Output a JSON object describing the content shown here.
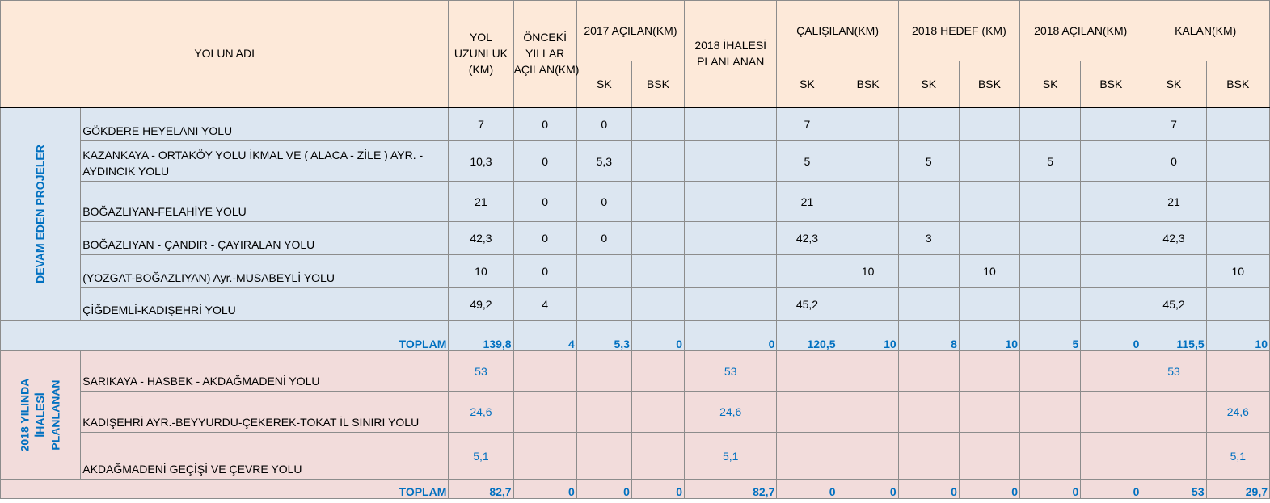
{
  "headers": {
    "yolun_adi": "YOLUN ADI",
    "yol_uzunluk": "YOL UZUNLUK (KM)",
    "onceki": "ÖNCEKİ YILLAR AÇILAN(KM)",
    "acilan_2017": "2017 AÇILAN(KM)",
    "ihale_2018": "2018 İHALESİ PLANLANAN",
    "calisilan": "ÇALIŞILAN(KM)",
    "hedef_2018": "2018 HEDEF (KM)",
    "acilan_2018": "2018 AÇILAN(KM)",
    "kalan": "KALAN(KM)",
    "sk": "SK",
    "bsk": "BSK"
  },
  "section1": {
    "label": "DEVAM EDEN PROJELER",
    "rows": [
      {
        "name": "GÖKDERE HEYELANI YOLU",
        "cells": [
          "7",
          "0",
          "0",
          "",
          "",
          "7",
          "",
          "",
          "",
          "",
          "",
          "7",
          ""
        ]
      },
      {
        "name": "KAZANKAYA - ORTAKÖY YOLU İKMAL VE ( ALACA - ZİLE ) AYR. - AYDINCIK YOLU",
        "cells": [
          "10,3",
          "0",
          "5,3",
          "",
          "",
          "5",
          "",
          "5",
          "",
          "5",
          "",
          "0",
          ""
        ]
      },
      {
        "name": "BOĞAZLIYAN-FELAHİYE YOLU",
        "cells": [
          "21",
          "0",
          "0",
          "",
          "",
          "21",
          "",
          "",
          "",
          "",
          "",
          "21",
          ""
        ]
      },
      {
        "name": "BOĞAZLIYAN - ÇANDIR - ÇAYIRALAN YOLU",
        "cells": [
          "42,3",
          "0",
          "0",
          "",
          "",
          "42,3",
          "",
          "3",
          "",
          "",
          "",
          "42,3",
          ""
        ]
      },
      {
        "name": "(YOZGAT-BOĞAZLIYAN) Ayr.-MUSABEYLİ YOLU",
        "cells": [
          "10",
          "0",
          "",
          "",
          "",
          "",
          "10",
          "",
          "10",
          "",
          "",
          "",
          "10"
        ]
      },
      {
        "name": "ÇİĞDEMLİ-KADIŞEHRİ YOLU",
        "cells": [
          "49,2",
          "4",
          "",
          "",
          "",
          "45,2",
          "",
          "",
          "",
          "",
          "",
          "45,2",
          ""
        ]
      }
    ],
    "total": {
      "label": "TOPLAM",
      "cells": [
        "139,8",
        "4",
        "5,3",
        "0",
        "0",
        "120,5",
        "10",
        "8",
        "10",
        "5",
        "0",
        "115,5",
        "10"
      ]
    }
  },
  "section2": {
    "label": "2018 YILINDA İHALESİ PLANLANAN",
    "label_lines": [
      "2018 YILINDA",
      "İHALESİ",
      "PLANLANAN"
    ],
    "rows": [
      {
        "name": "SARIKAYA - HASBEK - AKDAĞMADENİ YOLU",
        "cells": [
          "53",
          "",
          "",
          "",
          "53",
          "",
          "",
          "",
          "",
          "",
          "",
          "53",
          ""
        ]
      },
      {
        "name": "KADIŞEHRİ AYR.-BEYYURDU-ÇEKEREK-TOKAT İL SINIRI YOLU",
        "cells": [
          "24,6",
          "",
          "",
          "",
          "24,6",
          "",
          "",
          "",
          "",
          "",
          "",
          "",
          "24,6"
        ]
      },
      {
        "name": "AKDAĞMADENİ GEÇİŞİ VE ÇEVRE YOLU",
        "cells": [
          "5,1",
          "",
          "",
          "",
          "5,1",
          "",
          "",
          "",
          "",
          "",
          "",
          "",
          "5,1"
        ]
      }
    ],
    "total": {
      "label": "TOPLAM",
      "cells": [
        "82,7",
        "0",
        "0",
        "0",
        "82,7",
        "0",
        "0",
        "0",
        "0",
        "0",
        "0",
        "53",
        "29,7"
      ]
    }
  },
  "colors": {
    "header_bg": "#fde9d9",
    "section1_bg": "#dce6f1",
    "section2_bg": "#f2dcdb",
    "accent_blue": "#0070c0"
  }
}
